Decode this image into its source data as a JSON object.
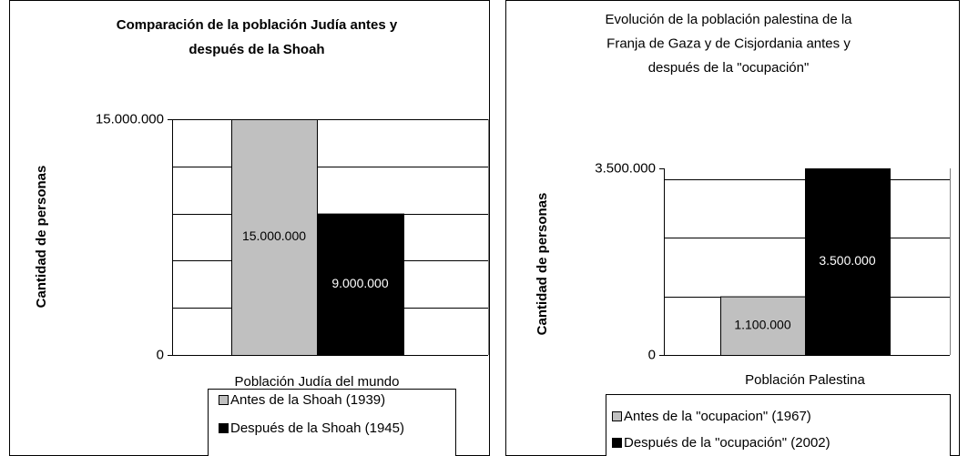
{
  "chart_data": [
    {
      "type": "bar",
      "title": [
        "Comparación de la población Judía antes y",
        "después de la Shoah"
      ],
      "y_label": "Cantidad de personas",
      "categories": [
        "Población Judía del mundo"
      ],
      "series": [
        {
          "name": "Antes de la Shoah (1939)",
          "color": "#c0c0c0",
          "values": [
            15000000
          ],
          "value_labels": [
            "15.000.000"
          ]
        },
        {
          "name": "Después de la Shoah (1945)",
          "color": "#000000",
          "values": [
            9000000
          ],
          "value_labels": [
            "9.000.000"
          ]
        }
      ],
      "ylim": [
        0,
        15000000
      ],
      "yticks": [
        0,
        {
          "value": 15000000,
          "label": "15.000.000"
        }
      ],
      "gridlines": [
        3000000,
        6000000,
        9000000,
        12000000,
        15000000
      ],
      "grid": true
    },
    {
      "type": "bar",
      "title": [
        "Evolución de la población palestina de la",
        "Franja de Gaza y de Cisjordania antes y",
        "después de la \"ocupación\""
      ],
      "y_label": "Cantidad de personas",
      "categories": [
        "Población Palestina"
      ],
      "series": [
        {
          "name": "Antes de la \"ocupacion\" (1967)",
          "color": "#c0c0c0",
          "values": [
            1100000
          ],
          "value_labels": [
            "1.100.000"
          ]
        },
        {
          "name": "Después de la \"ocupación\" (2002)",
          "color": "#000000",
          "values": [
            3500000
          ],
          "value_labels": [
            "3.500.000"
          ]
        }
      ],
      "ylim": [
        0,
        3500000
      ],
      "yticks": [
        0,
        {
          "value": 3500000,
          "label": "3.500.000"
        }
      ],
      "gridlines": [
        1100000,
        2200000,
        3300000
      ],
      "grid": true
    }
  ]
}
